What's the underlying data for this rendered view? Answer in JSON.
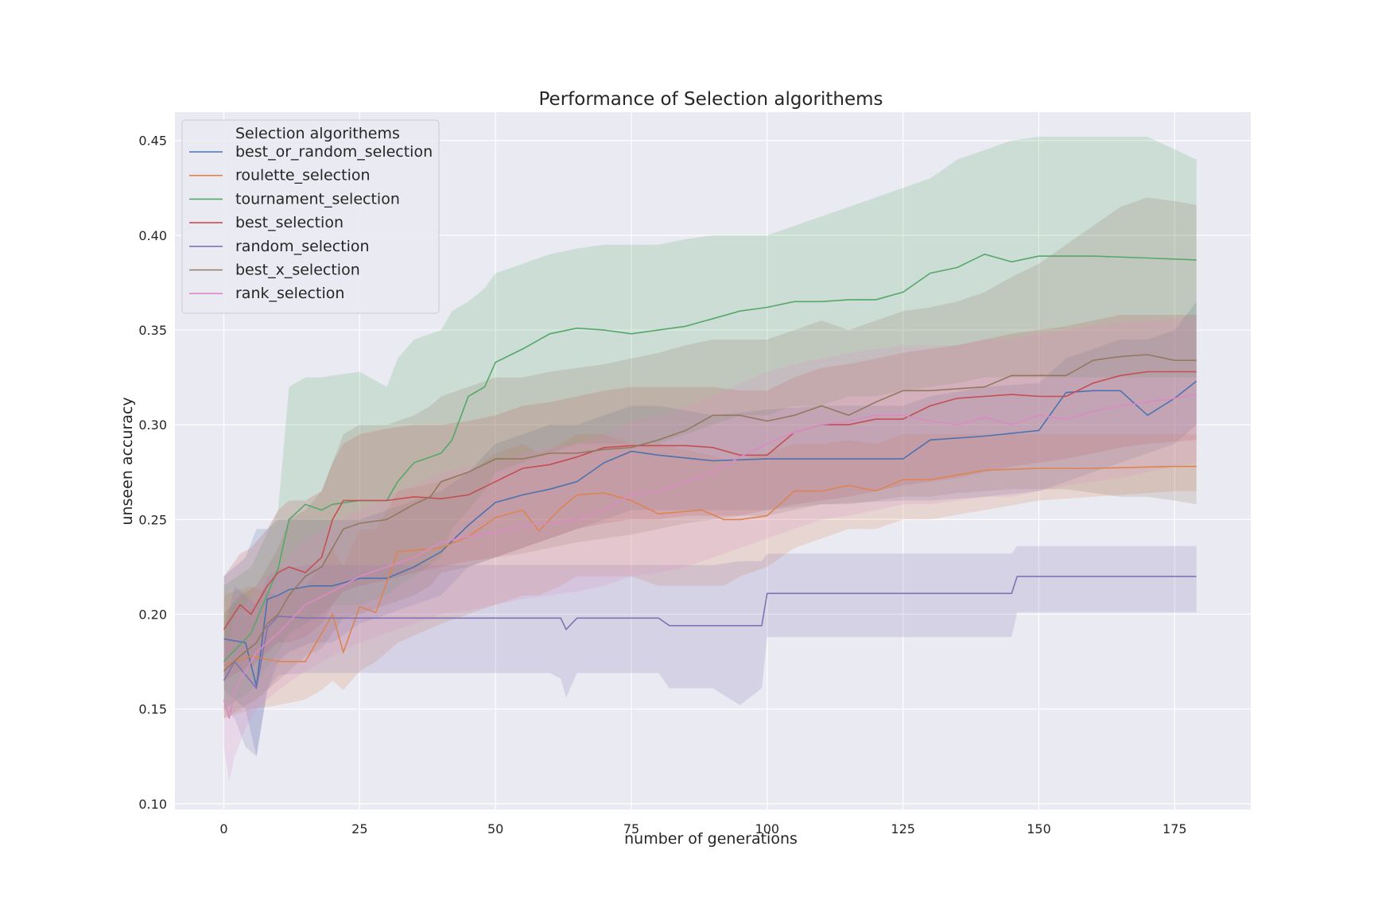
{
  "chart_data": {
    "type": "line",
    "title": "Performance of Selection algorithems",
    "xlabel": "number of generations",
    "ylabel": "unseen accuracy",
    "xlim": [
      -9,
      189
    ],
    "ylim": [
      0.097,
      0.465
    ],
    "xticks": [
      0,
      25,
      50,
      75,
      100,
      125,
      150,
      175
    ],
    "yticks": [
      0.1,
      0.15,
      0.2,
      0.25,
      0.3,
      0.35,
      0.4,
      0.45
    ],
    "ytick_labels": [
      "0.10",
      "0.15",
      "0.20",
      "0.25",
      "0.30",
      "0.35",
      "0.40",
      "0.45"
    ],
    "grid": true,
    "background": "#eaeaf2",
    "legend": {
      "title": "Selection algorithems",
      "placement": "top-left"
    },
    "series": [
      {
        "name": "best_or_random_selection",
        "color": "#4c72b0",
        "x": [
          0,
          4,
          6,
          8,
          10,
          12,
          16,
          20,
          25,
          30,
          35,
          40,
          45,
          50,
          55,
          60,
          65,
          70,
          75,
          80,
          90,
          100,
          110,
          125,
          130,
          140,
          150,
          155,
          160,
          165,
          170,
          175,
          179
        ],
        "y": [
          0.187,
          0.185,
          0.162,
          0.208,
          0.21,
          0.213,
          0.215,
          0.215,
          0.219,
          0.219,
          0.225,
          0.233,
          0.247,
          0.259,
          0.263,
          0.266,
          0.27,
          0.28,
          0.286,
          0.284,
          0.281,
          0.282,
          0.282,
          0.282,
          0.292,
          0.294,
          0.297,
          0.317,
          0.318,
          0.318,
          0.305,
          0.314,
          0.323
        ],
        "lower": [
          0.16,
          0.15,
          0.125,
          0.16,
          0.175,
          0.18,
          0.185,
          0.185,
          0.195,
          0.2,
          0.205,
          0.21,
          0.225,
          0.23,
          0.235,
          0.24,
          0.245,
          0.25,
          0.255,
          0.255,
          0.255,
          0.255,
          0.258,
          0.26,
          0.26,
          0.262,
          0.265,
          0.27,
          0.275,
          0.28,
          0.285,
          0.29,
          0.3
        ],
        "upper": [
          0.22,
          0.23,
          0.245,
          0.245,
          0.25,
          0.25,
          0.25,
          0.25,
          0.25,
          0.255,
          0.26,
          0.265,
          0.275,
          0.29,
          0.295,
          0.3,
          0.3,
          0.305,
          0.31,
          0.31,
          0.305,
          0.308,
          0.31,
          0.31,
          0.315,
          0.32,
          0.322,
          0.335,
          0.34,
          0.345,
          0.345,
          0.35,
          0.365
        ]
      },
      {
        "name": "roulette_selection",
        "color": "#dd8452",
        "x": [
          0,
          5,
          10,
          15,
          18,
          20,
          22,
          25,
          28,
          32,
          40,
          45,
          50,
          55,
          58,
          62,
          65,
          70,
          75,
          80,
          88,
          92,
          95,
          100,
          105,
          110,
          115,
          120,
          125,
          130,
          140,
          150,
          160,
          175,
          179
        ],
        "y": [
          0.173,
          0.178,
          0.175,
          0.175,
          0.19,
          0.2,
          0.18,
          0.204,
          0.201,
          0.233,
          0.235,
          0.241,
          0.251,
          0.255,
          0.244,
          0.256,
          0.263,
          0.264,
          0.26,
          0.253,
          0.255,
          0.25,
          0.25,
          0.252,
          0.265,
          0.265,
          0.268,
          0.265,
          0.271,
          0.271,
          0.276,
          0.277,
          0.277,
          0.278,
          0.278
        ],
        "lower": [
          0.145,
          0.15,
          0.152,
          0.155,
          0.16,
          0.165,
          0.16,
          0.17,
          0.175,
          0.185,
          0.195,
          0.2,
          0.205,
          0.21,
          0.21,
          0.215,
          0.22,
          0.22,
          0.22,
          0.215,
          0.215,
          0.215,
          0.22,
          0.225,
          0.235,
          0.24,
          0.245,
          0.245,
          0.25,
          0.25,
          0.255,
          0.26,
          0.262,
          0.265,
          0.265
        ],
        "upper": [
          0.21,
          0.215,
          0.21,
          0.215,
          0.225,
          0.235,
          0.225,
          0.245,
          0.245,
          0.265,
          0.27,
          0.275,
          0.285,
          0.29,
          0.285,
          0.29,
          0.295,
          0.295,
          0.29,
          0.29,
          0.285,
          0.282,
          0.282,
          0.285,
          0.29,
          0.29,
          0.292,
          0.29,
          0.295,
          0.295,
          0.295,
          0.295,
          0.295,
          0.295,
          0.295
        ]
      },
      {
        "name": "tournament_selection",
        "color": "#55a868",
        "x": [
          0,
          5,
          10,
          12,
          15,
          18,
          20,
          25,
          30,
          32,
          35,
          40,
          42,
          45,
          48,
          50,
          55,
          60,
          65,
          70,
          75,
          80,
          85,
          90,
          95,
          100,
          105,
          110,
          115,
          120,
          125,
          130,
          135,
          140,
          145,
          150,
          160,
          170,
          179
        ],
        "y": [
          0.175,
          0.19,
          0.224,
          0.25,
          0.258,
          0.255,
          0.258,
          0.26,
          0.26,
          0.27,
          0.28,
          0.285,
          0.292,
          0.315,
          0.32,
          0.333,
          0.34,
          0.348,
          0.351,
          0.35,
          0.348,
          0.35,
          0.352,
          0.356,
          0.36,
          0.362,
          0.365,
          0.365,
          0.366,
          0.366,
          0.37,
          0.38,
          0.383,
          0.39,
          0.386,
          0.389,
          0.389,
          0.388,
          0.387
        ],
        "lower": [
          0.15,
          0.16,
          0.18,
          0.19,
          0.195,
          0.2,
          0.205,
          0.205,
          0.21,
          0.215,
          0.22,
          0.23,
          0.245,
          0.255,
          0.265,
          0.275,
          0.28,
          0.285,
          0.29,
          0.29,
          0.29,
          0.29,
          0.295,
          0.3,
          0.305,
          0.305,
          0.31,
          0.31,
          0.315,
          0.315,
          0.318,
          0.32,
          0.322,
          0.325,
          0.325,
          0.325,
          0.325,
          0.325,
          0.325
        ],
        "upper": [
          0.215,
          0.225,
          0.255,
          0.32,
          0.325,
          0.325,
          0.326,
          0.328,
          0.32,
          0.335,
          0.345,
          0.35,
          0.36,
          0.365,
          0.372,
          0.38,
          0.385,
          0.39,
          0.393,
          0.395,
          0.395,
          0.395,
          0.398,
          0.4,
          0.4,
          0.4,
          0.405,
          0.41,
          0.415,
          0.42,
          0.425,
          0.43,
          0.44,
          0.445,
          0.45,
          0.452,
          0.452,
          0.452,
          0.44
        ]
      },
      {
        "name": "best_selection",
        "color": "#c44e52",
        "x": [
          0,
          3,
          5,
          8,
          10,
          12,
          15,
          18,
          20,
          22,
          25,
          30,
          35,
          40,
          45,
          50,
          55,
          60,
          65,
          70,
          75,
          80,
          85,
          90,
          95,
          100,
          105,
          110,
          115,
          120,
          125,
          130,
          135,
          140,
          145,
          150,
          155,
          160,
          165,
          170,
          179
        ],
        "y": [
          0.192,
          0.205,
          0.2,
          0.215,
          0.222,
          0.225,
          0.222,
          0.23,
          0.25,
          0.26,
          0.26,
          0.26,
          0.262,
          0.261,
          0.263,
          0.27,
          0.277,
          0.279,
          0.283,
          0.288,
          0.289,
          0.289,
          0.289,
          0.288,
          0.284,
          0.284,
          0.296,
          0.3,
          0.3,
          0.303,
          0.303,
          0.31,
          0.314,
          0.315,
          0.316,
          0.315,
          0.315,
          0.322,
          0.326,
          0.328,
          0.328
        ],
        "lower": [
          0.165,
          0.17,
          0.172,
          0.18,
          0.185,
          0.185,
          0.188,
          0.195,
          0.205,
          0.212,
          0.215,
          0.218,
          0.222,
          0.225,
          0.228,
          0.23,
          0.235,
          0.24,
          0.245,
          0.248,
          0.25,
          0.25,
          0.252,
          0.252,
          0.252,
          0.255,
          0.258,
          0.26,
          0.262,
          0.265,
          0.268,
          0.27,
          0.272,
          0.275,
          0.278,
          0.28,
          0.282,
          0.285,
          0.288,
          0.29,
          0.292
        ],
        "upper": [
          0.22,
          0.232,
          0.235,
          0.245,
          0.255,
          0.26,
          0.26,
          0.265,
          0.28,
          0.29,
          0.295,
          0.298,
          0.3,
          0.3,
          0.302,
          0.305,
          0.31,
          0.312,
          0.315,
          0.318,
          0.32,
          0.32,
          0.32,
          0.32,
          0.318,
          0.318,
          0.325,
          0.33,
          0.332,
          0.335,
          0.338,
          0.34,
          0.342,
          0.345,
          0.348,
          0.35,
          0.352,
          0.355,
          0.358,
          0.358,
          0.358
        ]
      },
      {
        "name": "random_selection",
        "color": "#8172b3",
        "x": [
          0,
          2,
          4,
          6,
          8,
          10,
          15,
          20,
          30,
          40,
          50,
          60,
          62,
          63,
          65,
          70,
          75,
          80,
          82,
          85,
          90,
          95,
          99,
          100,
          105,
          110,
          120,
          130,
          140,
          145,
          146,
          150,
          160,
          170,
          179
        ],
        "y": [
          0.165,
          0.175,
          0.168,
          0.161,
          0.193,
          0.199,
          0.198,
          0.198,
          0.198,
          0.198,
          0.198,
          0.198,
          0.198,
          0.192,
          0.198,
          0.198,
          0.198,
          0.198,
          0.194,
          0.194,
          0.194,
          0.194,
          0.194,
          0.211,
          0.211,
          0.211,
          0.211,
          0.211,
          0.211,
          0.211,
          0.22,
          0.22,
          0.22,
          0.22,
          0.22
        ],
        "lower": [
          0.15,
          0.145,
          0.13,
          0.125,
          0.16,
          0.168,
          0.169,
          0.169,
          0.169,
          0.169,
          0.169,
          0.169,
          0.166,
          0.156,
          0.169,
          0.169,
          0.169,
          0.169,
          0.161,
          0.161,
          0.161,
          0.152,
          0.161,
          0.188,
          0.188,
          0.188,
          0.188,
          0.188,
          0.188,
          0.188,
          0.201,
          0.201,
          0.201,
          0.201,
          0.201
        ],
        "upper": [
          0.19,
          0.215,
          0.21,
          0.205,
          0.22,
          0.224,
          0.226,
          0.226,
          0.226,
          0.226,
          0.226,
          0.226,
          0.226,
          0.226,
          0.226,
          0.226,
          0.226,
          0.226,
          0.226,
          0.226,
          0.226,
          0.228,
          0.228,
          0.232,
          0.232,
          0.232,
          0.232,
          0.232,
          0.232,
          0.232,
          0.236,
          0.236,
          0.236,
          0.236,
          0.236
        ]
      },
      {
        "name": "best_x_selection",
        "color": "#937860",
        "x": [
          0,
          3,
          6,
          8,
          10,
          12,
          15,
          18,
          20,
          22,
          25,
          30,
          35,
          38,
          40,
          45,
          50,
          55,
          60,
          65,
          70,
          75,
          80,
          85,
          90,
          95,
          100,
          105,
          110,
          115,
          120,
          125,
          130,
          135,
          140,
          145,
          150,
          155,
          160,
          165,
          170,
          175,
          179
        ],
        "y": [
          0.17,
          0.178,
          0.185,
          0.195,
          0.2,
          0.21,
          0.22,
          0.225,
          0.235,
          0.245,
          0.248,
          0.25,
          0.258,
          0.262,
          0.27,
          0.275,
          0.282,
          0.282,
          0.285,
          0.285,
          0.287,
          0.288,
          0.292,
          0.297,
          0.305,
          0.305,
          0.302,
          0.305,
          0.31,
          0.305,
          0.312,
          0.318,
          0.318,
          0.319,
          0.32,
          0.326,
          0.326,
          0.326,
          0.334,
          0.336,
          0.337,
          0.334,
          0.334
        ],
        "lower": [
          0.145,
          0.15,
          0.155,
          0.16,
          0.165,
          0.17,
          0.178,
          0.182,
          0.19,
          0.198,
          0.2,
          0.205,
          0.21,
          0.215,
          0.222,
          0.225,
          0.23,
          0.232,
          0.235,
          0.238,
          0.24,
          0.242,
          0.245,
          0.248,
          0.25,
          0.252,
          0.252,
          0.255,
          0.258,
          0.258,
          0.26,
          0.262,
          0.262,
          0.264,
          0.265,
          0.266,
          0.266,
          0.266,
          0.264,
          0.262,
          0.262,
          0.26,
          0.258
        ],
        "upper": [
          0.2,
          0.21,
          0.215,
          0.225,
          0.235,
          0.25,
          0.255,
          0.265,
          0.28,
          0.295,
          0.3,
          0.3,
          0.305,
          0.31,
          0.315,
          0.32,
          0.325,
          0.325,
          0.328,
          0.33,
          0.332,
          0.335,
          0.338,
          0.342,
          0.345,
          0.345,
          0.345,
          0.35,
          0.355,
          0.35,
          0.355,
          0.36,
          0.362,
          0.365,
          0.37,
          0.378,
          0.385,
          0.395,
          0.405,
          0.415,
          0.42,
          0.418,
          0.416
        ]
      },
      {
        "name": "rank_selection",
        "color": "#da8bc3",
        "x": [
          0,
          1,
          2,
          4,
          6,
          8,
          10,
          15,
          20,
          25,
          30,
          35,
          40,
          45,
          50,
          55,
          60,
          65,
          70,
          75,
          80,
          85,
          90,
          95,
          100,
          105,
          110,
          115,
          120,
          125,
          130,
          135,
          140,
          145,
          150,
          155,
          160,
          165,
          170,
          175,
          179
        ],
        "y": [
          0.155,
          0.145,
          0.16,
          0.17,
          0.18,
          0.185,
          0.19,
          0.205,
          0.212,
          0.22,
          0.225,
          0.23,
          0.238,
          0.241,
          0.243,
          0.247,
          0.248,
          0.25,
          0.255,
          0.263,
          0.265,
          0.27,
          0.275,
          0.283,
          0.29,
          0.296,
          0.3,
          0.302,
          0.305,
          0.305,
          0.302,
          0.3,
          0.304,
          0.3,
          0.305,
          0.303,
          0.307,
          0.31,
          0.312,
          0.314,
          0.316
        ],
        "lower": [
          0.13,
          0.112,
          0.125,
          0.14,
          0.15,
          0.155,
          0.16,
          0.17,
          0.178,
          0.185,
          0.19,
          0.195,
          0.2,
          0.202,
          0.205,
          0.208,
          0.21,
          0.212,
          0.215,
          0.22,
          0.222,
          0.225,
          0.23,
          0.235,
          0.24,
          0.245,
          0.25,
          0.252,
          0.255,
          0.258,
          0.258,
          0.26,
          0.262,
          0.262,
          0.265,
          0.268,
          0.27,
          0.272,
          0.275,
          0.278,
          0.28
        ],
        "upper": [
          0.19,
          0.185,
          0.2,
          0.205,
          0.215,
          0.22,
          0.225,
          0.24,
          0.248,
          0.255,
          0.262,
          0.268,
          0.275,
          0.278,
          0.28,
          0.285,
          0.288,
          0.29,
          0.295,
          0.302,
          0.305,
          0.31,
          0.315,
          0.322,
          0.328,
          0.332,
          0.335,
          0.338,
          0.34,
          0.342,
          0.342,
          0.342,
          0.345,
          0.345,
          0.348,
          0.35,
          0.352,
          0.354,
          0.355,
          0.356,
          0.356
        ]
      }
    ]
  }
}
